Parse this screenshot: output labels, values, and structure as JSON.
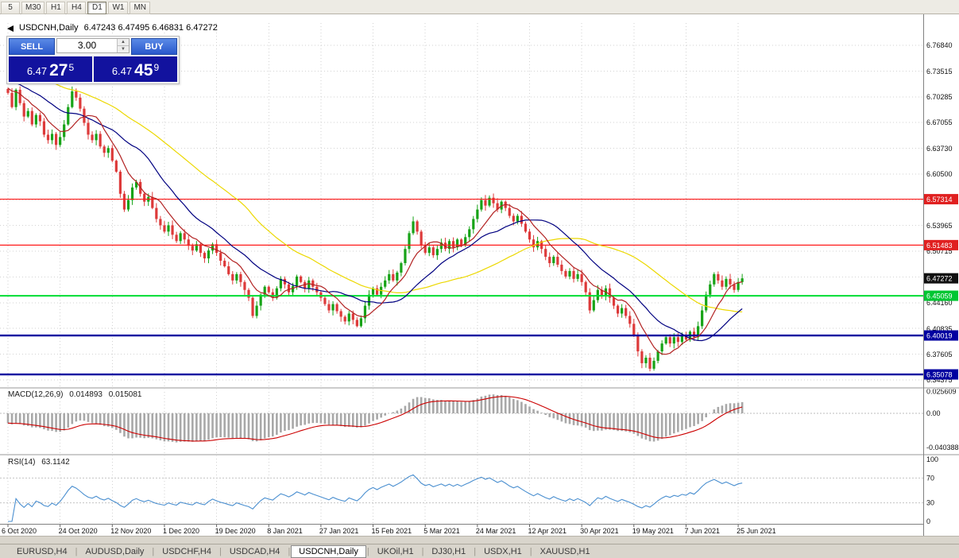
{
  "header": {
    "symbol": "USDCNH,Daily",
    "ohlc": "6.47243 6.47495 6.46831 6.47272"
  },
  "toolbar": {
    "timeframes": [
      {
        "label": "5",
        "active": false
      },
      {
        "label": "M30",
        "active": false
      },
      {
        "label": "H1",
        "active": false
      },
      {
        "label": "H4",
        "active": false
      },
      {
        "label": "D1",
        "active": true
      },
      {
        "label": "W1",
        "active": false
      },
      {
        "label": "MN",
        "active": false
      }
    ]
  },
  "trade_panel": {
    "sell_label": "SELL",
    "buy_label": "BUY",
    "lot_value": "3.00",
    "sell_price": {
      "base": "6.47",
      "pips": "27",
      "pipette": "5"
    },
    "buy_price": {
      "base": "6.47",
      "pips": "45",
      "pipette": "9"
    }
  },
  "price_axis": {
    "labels": [
      "6.76840",
      "6.73515",
      "6.70285",
      "6.67055",
      "6.63730",
      "6.60500",
      "6.53965",
      "6.50715",
      "6.44160",
      "6.40835",
      "6.37605",
      "6.34375"
    ],
    "badges": [
      {
        "text": "6.57314",
        "bg": "#e02020",
        "fg": "#ffffff"
      },
      {
        "text": "6.51483",
        "bg": "#e02020",
        "fg": "#ffffff"
      },
      {
        "text": "6.47272",
        "bg": "#101010",
        "fg": "#ffffff"
      },
      {
        "text": "6.45059",
        "bg": "#00c632",
        "fg": "#ffffff"
      },
      {
        "text": "6.40019",
        "bg": "#0000a0",
        "fg": "#ffffff"
      },
      {
        "text": "6.35078",
        "bg": "#0000a0",
        "fg": "#ffffff"
      }
    ]
  },
  "indicator_headers": {
    "macd_label": "MACD(12,26,9)",
    "macd_main": "0.014893",
    "macd_signal": "0.015081",
    "rsi_label": "RSI(14)",
    "rsi_value": "63.1142"
  },
  "bottom_tabs": [
    {
      "label": "EURUSD,H4",
      "active": false
    },
    {
      "label": "AUDUSD,Daily",
      "active": false
    },
    {
      "label": "USDCHF,H4",
      "active": false
    },
    {
      "label": "USDCAD,H4",
      "active": false
    },
    {
      "label": "USDCNH,Daily",
      "active": true
    },
    {
      "label": "UKOil,H1",
      "active": false
    },
    {
      "label": "DJ30,H1",
      "active": false
    },
    {
      "label": "USDX,H1",
      "active": false
    },
    {
      "label": "XAUUSD,H1",
      "active": false
    }
  ],
  "chart_data": {
    "type": "candlestick",
    "symbol": "USDCNH",
    "timeframe": "Daily",
    "current_ohlc": {
      "open": 6.47243,
      "high": 6.47495,
      "low": 6.46831,
      "close": 6.47272
    },
    "price_axis_range": [
      6.34375,
      6.7684
    ],
    "x_ticks": [
      "6 Oct 2020",
      "24 Oct 2020",
      "12 Nov 2020",
      "1 Dec 2020",
      "19 Dec 2020",
      "8 Jan 2021",
      "27 Jan 2021",
      "15 Feb 2021",
      "5 Mar 2021",
      "24 Mar 2021",
      "12 Apr 2021",
      "30 Apr 2021",
      "19 May 2021",
      "7 Jun 2021",
      "25 Jun 2021"
    ],
    "candles_per_tick": 13,
    "closes": [
      6.708,
      6.69,
      6.712,
      6.695,
      6.678,
      6.685,
      6.668,
      6.68,
      6.672,
      6.655,
      6.648,
      6.656,
      6.642,
      6.652,
      6.668,
      6.69,
      6.71,
      6.702,
      6.688,
      6.67,
      6.655,
      6.648,
      6.656,
      6.64,
      6.632,
      6.638,
      6.622,
      6.608,
      6.58,
      6.56,
      6.572,
      6.588,
      6.595,
      6.58,
      6.57,
      6.576,
      6.562,
      6.548,
      6.54,
      6.532,
      6.54,
      6.528,
      6.52,
      6.53,
      6.522,
      6.514,
      6.508,
      6.516,
      6.505,
      6.498,
      6.508,
      6.516,
      6.505,
      6.495,
      6.488,
      6.478,
      6.47,
      6.478,
      6.468,
      6.458,
      6.448,
      6.425,
      6.438,
      6.452,
      6.462,
      6.455,
      6.448,
      6.46,
      6.472,
      6.465,
      6.455,
      6.463,
      6.475,
      6.468,
      6.46,
      6.47,
      6.462,
      6.455,
      6.448,
      6.44,
      6.432,
      6.44,
      6.431,
      6.424,
      6.418,
      6.428,
      6.42,
      6.412,
      6.422,
      6.438,
      6.452,
      6.46,
      6.452,
      6.462,
      6.47,
      6.478,
      6.47,
      6.48,
      6.492,
      6.51,
      6.53,
      6.545,
      6.532,
      6.515,
      6.505,
      6.512,
      6.502,
      6.51,
      6.518,
      6.51,
      6.52,
      6.512,
      6.522,
      6.515,
      6.525,
      6.535,
      6.548,
      6.56,
      6.572,
      6.565,
      6.575,
      6.568,
      6.56,
      6.57,
      6.562,
      6.552,
      6.545,
      6.552,
      6.542,
      6.532,
      6.522,
      6.512,
      6.52,
      6.51,
      6.5,
      6.492,
      6.5,
      6.49,
      6.482,
      6.475,
      6.482,
      6.472,
      6.478,
      6.468,
      6.455,
      6.432,
      6.445,
      6.458,
      6.45,
      6.46,
      6.448,
      6.438,
      6.428,
      6.435,
      6.425,
      6.415,
      6.4,
      6.38,
      6.365,
      6.372,
      6.358,
      6.368,
      6.38,
      6.39,
      6.398,
      6.39,
      6.398,
      6.392,
      6.4,
      6.395,
      6.405,
      6.398,
      6.412,
      6.432,
      6.452,
      6.465,
      6.478,
      6.47,
      6.462,
      6.472,
      6.465,
      6.458,
      6.468,
      6.4727
    ],
    "hlines": [
      {
        "price": 6.57314,
        "color": "#ff1a1a",
        "width": 1.2
      },
      {
        "price": 6.51483,
        "color": "#ff1a1a",
        "width": 1.2
      },
      {
        "price": 6.45059,
        "color": "#00dd33",
        "width": 2
      },
      {
        "price": 6.40019,
        "color": "#0000a0",
        "width": 2.4
      },
      {
        "price": 6.35078,
        "color": "#0000a0",
        "width": 2.4
      }
    ],
    "moving_averages": [
      {
        "period": 45,
        "color": "#ecd800"
      },
      {
        "period": 20,
        "color": "#000080"
      },
      {
        "period": 8,
        "color": "#b22222"
      }
    ],
    "indicators": {
      "macd": {
        "params": "12,26,9",
        "main": 0.014893,
        "signal": 0.015081,
        "axis": [
          {
            "label": "0.025609",
            "value": 0.025609
          },
          {
            "label": "0.00",
            "value": 0
          },
          {
            "label": "-0.040388",
            "value": -0.040388
          }
        ]
      },
      "rsi": {
        "period": 14,
        "value": 63.1142,
        "levels": [
          70,
          30
        ],
        "axis": [
          {
            "label": "100",
            "value": 100
          },
          {
            "label": "70",
            "value": 70
          },
          {
            "label": "30",
            "value": 30
          },
          {
            "label": "0",
            "value": 0
          }
        ]
      }
    },
    "colors": {
      "bull": "#17a317",
      "bear": "#dd3a3a",
      "grid": "#d2d2d2",
      "macd_hist": "#a8a8a8",
      "macd_signal": "#cc0000",
      "rsi": "#4a8fd0"
    }
  }
}
